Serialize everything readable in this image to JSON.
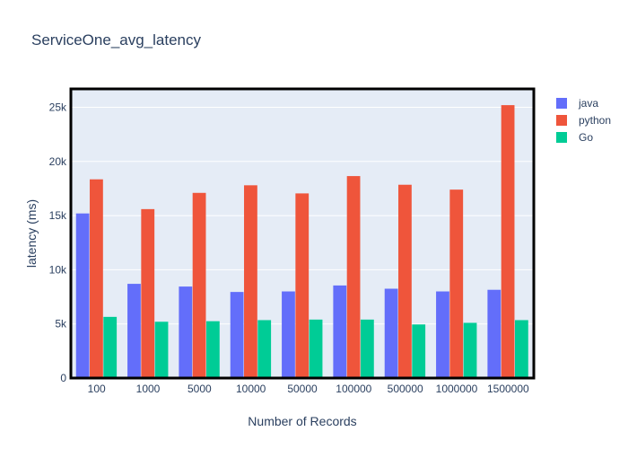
{
  "chart_data": {
    "type": "bar",
    "title": "ServiceOne_avg_latency",
    "xlabel": "Number of Records",
    "ylabel": "latency (ms)",
    "categories": [
      "100",
      "1000",
      "5000",
      "10000",
      "50000",
      "100000",
      "500000",
      "1000000",
      "1500000"
    ],
    "series": [
      {
        "name": "java",
        "color": "#636efa",
        "values": [
          15200,
          8700,
          8450,
          7950,
          8000,
          8550,
          8250,
          8000,
          8150
        ]
      },
      {
        "name": "python",
        "color": "#ef553b",
        "values": [
          18350,
          15600,
          17100,
          17800,
          17050,
          18650,
          17850,
          17400,
          25200
        ]
      },
      {
        "name": "Go",
        "color": "#00cc96",
        "values": [
          5650,
          5200,
          5250,
          5350,
          5400,
          5400,
          4950,
          5100,
          5350
        ]
      }
    ],
    "ylim": [
      0,
      26700
    ],
    "yticks": [
      0,
      5000,
      10000,
      15000,
      20000,
      25000
    ],
    "ytick_labels": [
      "0",
      "5k",
      "10k",
      "15k",
      "20k",
      "25k"
    ],
    "grid": true,
    "legend_position": "right"
  }
}
